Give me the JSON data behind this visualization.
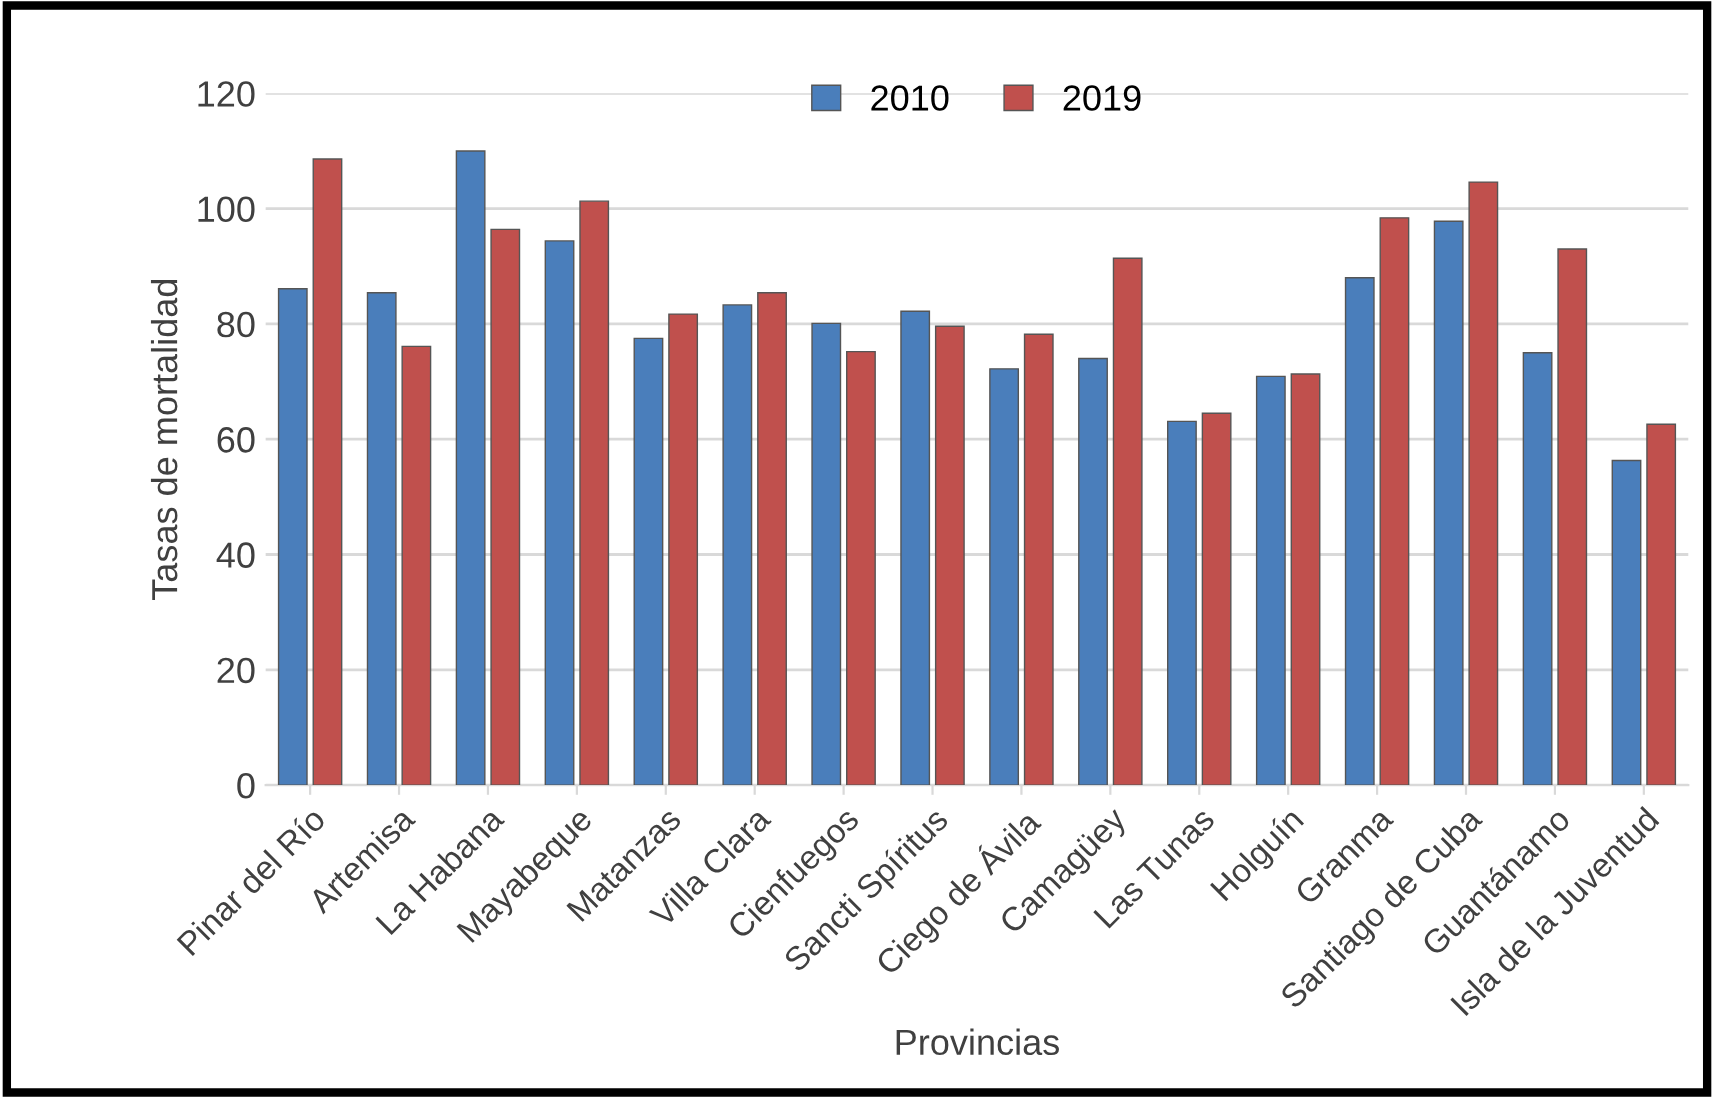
{
  "chart_data": {
    "type": "bar",
    "xlabel": "Provincias",
    "ylabel": "Tasas de mortalidad",
    "categories": [
      "Pinar del Río",
      "Artemisa",
      "La Habana",
      "Mayabeque",
      "Matanzas",
      "Villa Clara",
      "Cienfuegos",
      "Sancti Spíritus",
      "Ciego de Ávila",
      "Camagüey",
      "Las Tunas",
      "Holguín",
      "Granma",
      "Santiago de Cuba",
      "Guantánamo",
      "Isla de la Juventud"
    ],
    "series": [
      {
        "name": "2010",
        "color": "#4a7ebb",
        "values": [
          86.1,
          85.4,
          110.0,
          94.4,
          77.5,
          83.3,
          80.1,
          82.2,
          72.2,
          74.0,
          63.1,
          70.9,
          88.0,
          97.8,
          75.0,
          56.3
        ]
      },
      {
        "name": "2019",
        "color": "#c0504d",
        "values": [
          108.6,
          76.1,
          96.4,
          101.3,
          81.7,
          85.4,
          75.2,
          79.6,
          78.2,
          91.4,
          64.5,
          71.3,
          98.4,
          104.6,
          93.0,
          62.6
        ]
      }
    ],
    "ylim": [
      0,
      120
    ],
    "yticks": [
      0,
      20,
      40,
      60,
      80,
      100,
      120
    ],
    "grid": "y",
    "legend": "top"
  }
}
